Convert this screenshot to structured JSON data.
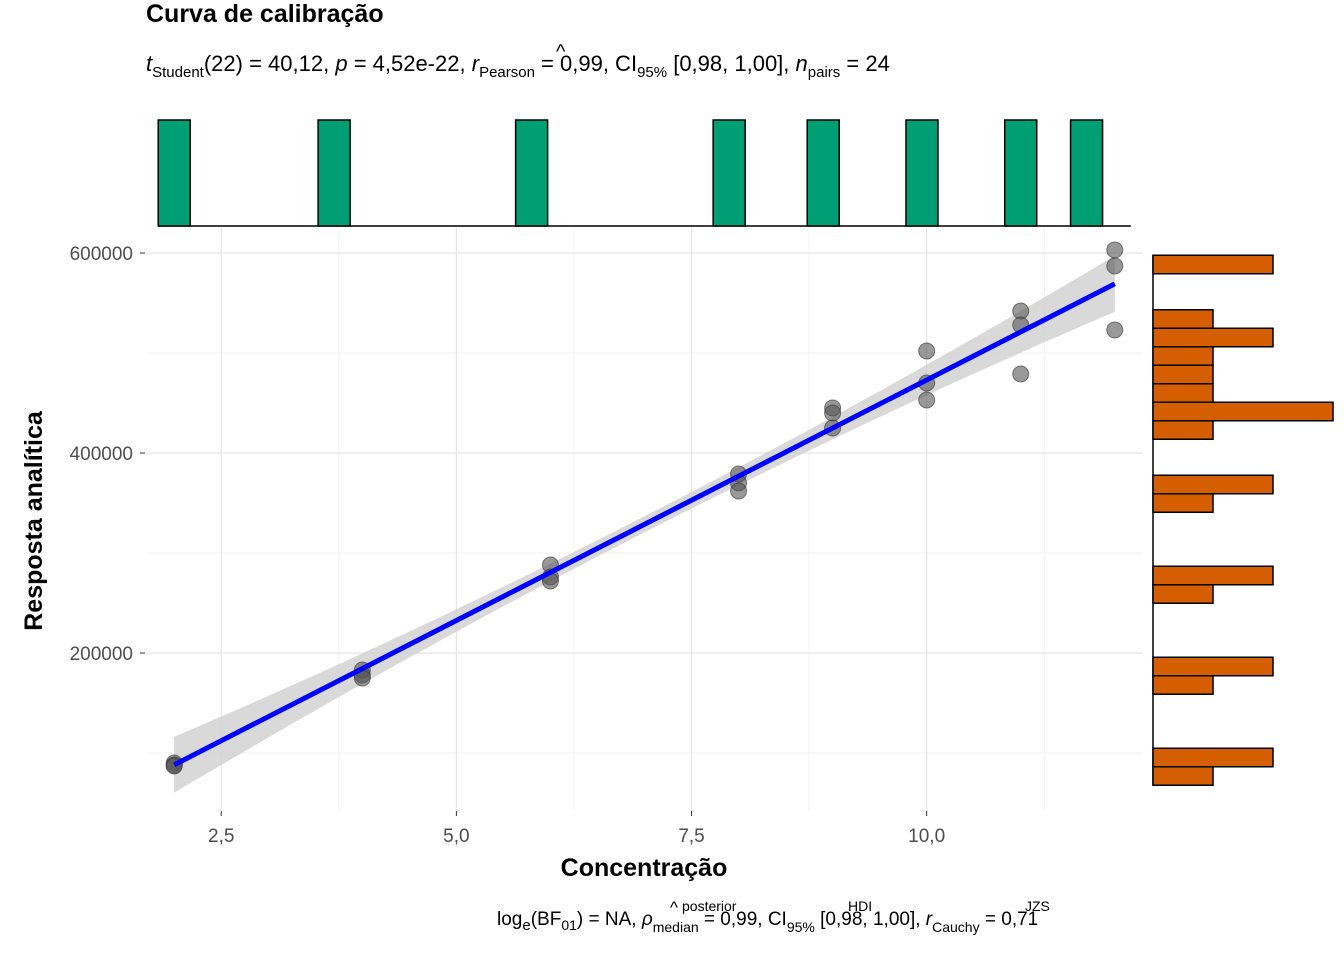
{
  "chart_data": {
    "type": "scatter",
    "title": "Curva de calibração",
    "subtitle": {
      "t_sym": "t",
      "t_sub": "Student",
      "t_df": "(22) = 40,12, ",
      "p_sym": "p",
      "p_val": " = 4,52e-22, ",
      "r_sym": "r",
      "r_hat": "^",
      "r_sub": "Pearson",
      "r_val": " = 0,99, CI",
      "ci_sub": "95%",
      "ci_val": " [0,98, 1,00], ",
      "n_sym": "n",
      "n_sub": "pairs",
      "n_val": " = 24"
    },
    "caption": {
      "log": "log",
      "log_sub": "e",
      "bf": "(BF",
      "bf_sub": "01",
      "bf_val": ") = NA, ",
      "rho_sym": "ρ",
      "rho_hat": "^",
      "rho_sup": "posterior",
      "rho_sub": "median",
      "rho_val": " = 0,99, CI",
      "ci_sup": "HDI",
      "ci_sub": "95%",
      "ci_val": " [0,98, 1,00], ",
      "rc_sym": "r",
      "rc_sup": "JZS",
      "rc_sub": "Cauchy",
      "rc_val": " = 0,71"
    },
    "xlabel": "Concentração",
    "ylabel": "Resposta analítica",
    "xlim": [
      1.7,
      12.3
    ],
    "ylim": [
      43000,
      625000
    ],
    "x_ticks": [
      2.5,
      5.0,
      7.5,
      10.0
    ],
    "x_tick_labels": [
      "2,5",
      "5,0",
      "7,5",
      "10,0"
    ],
    "y_ticks": [
      200000,
      400000,
      600000
    ],
    "y_tick_labels": [
      "200000",
      "400000",
      "600000"
    ],
    "grid": true,
    "points": [
      [
        2,
        90000
      ],
      [
        2,
        88000
      ],
      [
        2,
        87000
      ],
      [
        4,
        183000
      ],
      [
        4,
        178000
      ],
      [
        4,
        175000
      ],
      [
        6,
        288000
      ],
      [
        6,
        276000
      ],
      [
        6,
        272000
      ],
      [
        8,
        379000
      ],
      [
        8,
        370000
      ],
      [
        8,
        362000
      ],
      [
        9,
        445000
      ],
      [
        9,
        440000
      ],
      [
        9,
        425000
      ],
      [
        10,
        502000
      ],
      [
        10,
        470000
      ],
      [
        10,
        453000
      ],
      [
        11,
        542000
      ],
      [
        11,
        528000
      ],
      [
        11,
        479000
      ],
      [
        12,
        603000
      ],
      [
        12,
        587000
      ],
      [
        12,
        523000
      ]
    ],
    "fit": {
      "intercept": -8000,
      "slope": 48100,
      "x_range": [
        2,
        12
      ],
      "color": "#0000FF"
    },
    "marginal_x_histogram": {
      "color": "#009E73",
      "bins": [
        {
          "x": 2,
          "count": 3
        },
        {
          "x": 3.7,
          "count": 3
        },
        {
          "x": 5.8,
          "count": 3
        },
        {
          "x": 7.9,
          "count": 3
        },
        {
          "x": 8.9,
          "count": 3
        },
        {
          "x": 9.95,
          "count": 3
        },
        {
          "x": 11,
          "count": 3
        },
        {
          "x": 11.7,
          "count": 3
        }
      ]
    },
    "marginal_y_histogram": {
      "color": "#D55E00",
      "bin_width": 18500,
      "bins": [
        {
          "center": 77000,
          "count": 1
        },
        {
          "center": 95500,
          "count": 2
        },
        {
          "center": 168000,
          "count": 1
        },
        {
          "center": 186500,
          "count": 2
        },
        {
          "center": 259000,
          "count": 1
        },
        {
          "center": 277500,
          "count": 2
        },
        {
          "center": 350000,
          "count": 1
        },
        {
          "center": 368500,
          "count": 2
        },
        {
          "center": 423000,
          "count": 1
        },
        {
          "center": 441500,
          "count": 3
        },
        {
          "center": 460000,
          "count": 1
        },
        {
          "center": 478500,
          "count": 1
        },
        {
          "center": 497000,
          "count": 1
        },
        {
          "center": 515500,
          "count": 2
        },
        {
          "center": 534000,
          "count": 1
        },
        {
          "center": 588500,
          "count": 2
        }
      ]
    }
  }
}
